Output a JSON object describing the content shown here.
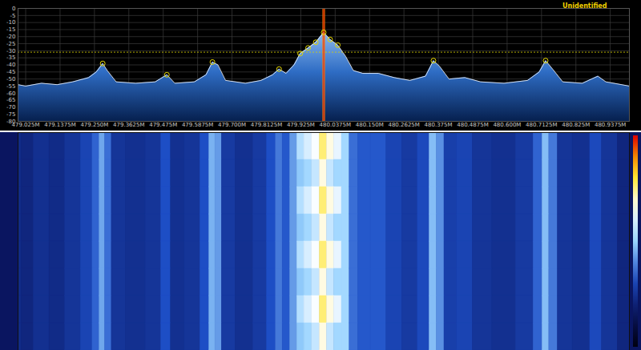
{
  "chart_data": [
    {
      "type": "area",
      "title": "Unidentified",
      "color": "#ffffff",
      "grid": true,
      "x": [
        479.0,
        479.025,
        479.077,
        479.128,
        479.179,
        479.231,
        479.256,
        479.277,
        479.292,
        479.321,
        479.385,
        479.449,
        479.487,
        479.513,
        479.577,
        479.615,
        479.636,
        479.654,
        479.679,
        479.744,
        479.795,
        479.833,
        479.854,
        479.877,
        479.903,
        479.923,
        479.949,
        479.974,
        480.0,
        480.021,
        480.046,
        480.072,
        480.097,
        480.128,
        480.179,
        480.231,
        480.282,
        480.333,
        480.359,
        480.379,
        480.41,
        480.462,
        480.513,
        480.59,
        480.667,
        480.705,
        480.726,
        480.749,
        480.782,
        480.846,
        480.897,
        480.923,
        481.0
      ],
      "values": [
        -54,
        -55,
        -53,
        -54,
        -52,
        -49,
        -45,
        -39,
        -44,
        -52,
        -53,
        -52,
        -47,
        -53,
        -52,
        -47,
        -38,
        -40,
        -51,
        -53,
        -51,
        -47,
        -43,
        -46,
        -40,
        -32,
        -28,
        -24,
        -17,
        -22,
        -26,
        -34,
        -44,
        -46,
        -46,
        -49,
        -51,
        -48,
        -37,
        -41,
        -50,
        -49,
        -52,
        -53,
        -51,
        -45,
        -37,
        -43,
        -52,
        -53,
        -48,
        -52,
        -55
      ],
      "xlim": [
        479.0,
        481.0
      ],
      "xticks": [
        {
          "value": 479.025,
          "label": "479.025M"
        },
        {
          "value": 479.1375,
          "label": "479.1375M"
        },
        {
          "value": 479.25,
          "label": "479.250M"
        },
        {
          "value": 479.3625,
          "label": "479.3625M"
        },
        {
          "value": 479.475,
          "label": "479.475M"
        },
        {
          "value": 479.5875,
          "label": "479.5875M"
        },
        {
          "value": 479.7,
          "label": "479.700M"
        },
        {
          "value": 479.8125,
          "label": "479.8125M"
        },
        {
          "value": 479.925,
          "label": "479.925M"
        },
        {
          "value": 480.0375,
          "label": "480.0375M"
        },
        {
          "value": 480.15,
          "label": "480.150M"
        },
        {
          "value": 480.2625,
          "label": "480.2625M"
        },
        {
          "value": 480.375,
          "label": "480.375M"
        },
        {
          "value": 480.4875,
          "label": "480.4875M"
        },
        {
          "value": 480.6,
          "label": "480.600M"
        },
        {
          "value": 480.7125,
          "label": "480.7125M"
        },
        {
          "value": 480.825,
          "label": "480.825M"
        },
        {
          "value": 480.9375,
          "label": "480.9375M"
        }
      ],
      "ylim": [
        -80,
        0
      ],
      "yticks": [
        -80,
        -75,
        -70,
        -65,
        -60,
        -55,
        -50,
        -45,
        -40,
        -35,
        -30,
        -25,
        -20,
        -15,
        -10,
        -5,
        0
      ],
      "threshold": -31,
      "center_frequency": 480.0,
      "peaks": [
        479.277,
        479.487,
        479.636,
        479.854,
        479.923,
        479.949,
        479.974,
        480.0,
        480.021,
        480.046,
        480.359,
        480.726
      ]
    },
    {
      "type": "heatmap",
      "tick_labels": false,
      "x": [
        479.0,
        479.025,
        479.077,
        479.128,
        479.179,
        479.231,
        479.256,
        479.277,
        479.292,
        479.321,
        479.385,
        479.449,
        479.487,
        479.513,
        479.577,
        479.615,
        479.636,
        479.654,
        479.679,
        479.744,
        479.795,
        479.833,
        479.854,
        479.877,
        479.903,
        479.923,
        479.949,
        479.974,
        480.0,
        480.021,
        480.046,
        480.072,
        480.097,
        480.128,
        480.179,
        480.231,
        480.282,
        480.333,
        480.359,
        480.379,
        480.41,
        480.462,
        480.513,
        480.59,
        480.667,
        480.705,
        480.726,
        480.749,
        480.782,
        480.846,
        480.897,
        480.923,
        481.0
      ],
      "xlim": [
        479.0,
        481.0
      ],
      "color_range": [
        -70,
        0
      ],
      "cells": [
        [
          -54,
          -55,
          -53,
          -54,
          -52,
          -49,
          -45,
          -39,
          -44,
          -52,
          -53,
          -52,
          -47,
          -53,
          -52,
          -47,
          -38,
          -40,
          -51,
          -53,
          -51,
          -47,
          -43,
          -46,
          -40,
          -32,
          -28,
          -24,
          -17,
          -22,
          -26,
          -34,
          -44,
          -46,
          -46,
          -49,
          -51,
          -48,
          -37,
          -41,
          -50,
          -49,
          -52,
          -53,
          -51,
          -45,
          -37,
          -43,
          -52,
          -53,
          -48,
          -52,
          -55
        ],
        [
          -54,
          -55,
          -53,
          -54,
          -52,
          -49,
          -45,
          -39,
          -44,
          -52,
          -53,
          -52,
          -47,
          -53,
          -52,
          -47,
          -38,
          -40,
          -51,
          -53,
          -51,
          -47,
          -43,
          -46,
          -40,
          -36,
          -34,
          -30,
          -22,
          -30,
          -34,
          -34,
          -44,
          -46,
          -46,
          -49,
          -51,
          -48,
          -37,
          -41,
          -50,
          -49,
          -52,
          -53,
          -51,
          -45,
          -37,
          -43,
          -52,
          -53,
          -48,
          -52,
          -55
        ],
        [
          -54,
          -55,
          -53,
          -54,
          -52,
          -49,
          -45,
          -39,
          -44,
          -52,
          -53,
          -52,
          -47,
          -53,
          -52,
          -47,
          -38,
          -40,
          -51,
          -53,
          -51,
          -47,
          -43,
          -46,
          -40,
          -32,
          -28,
          -24,
          -17,
          -22,
          -26,
          -34,
          -44,
          -46,
          -46,
          -49,
          -51,
          -48,
          -37,
          -41,
          -50,
          -49,
          -52,
          -53,
          -51,
          -45,
          -37,
          -43,
          -52,
          -53,
          -48,
          -52,
          -55
        ],
        [
          -54,
          -55,
          -53,
          -54,
          -52,
          -49,
          -45,
          -39,
          -44,
          -52,
          -53,
          -52,
          -47,
          -53,
          -52,
          -47,
          -38,
          -40,
          -51,
          -53,
          -51,
          -47,
          -43,
          -46,
          -40,
          -36,
          -34,
          -30,
          -22,
          -30,
          -34,
          -34,
          -44,
          -46,
          -46,
          -49,
          -51,
          -48,
          -37,
          -41,
          -50,
          -49,
          -52,
          -53,
          -51,
          -45,
          -37,
          -43,
          -52,
          -53,
          -48,
          -52,
          -55
        ],
        [
          -54,
          -55,
          -53,
          -54,
          -52,
          -49,
          -45,
          -39,
          -44,
          -52,
          -53,
          -52,
          -47,
          -53,
          -52,
          -47,
          -38,
          -40,
          -51,
          -53,
          -51,
          -47,
          -43,
          -46,
          -40,
          -32,
          -28,
          -24,
          -17,
          -22,
          -26,
          -34,
          -44,
          -46,
          -46,
          -49,
          -51,
          -48,
          -37,
          -41,
          -50,
          -49,
          -52,
          -53,
          -51,
          -45,
          -37,
          -43,
          -52,
          -53,
          -48,
          -52,
          -55
        ],
        [
          -54,
          -55,
          -53,
          -54,
          -52,
          -49,
          -45,
          -39,
          -44,
          -52,
          -53,
          -52,
          -47,
          -53,
          -52,
          -47,
          -38,
          -40,
          -51,
          -53,
          -51,
          -47,
          -43,
          -46,
          -40,
          -36,
          -34,
          -30,
          -22,
          -30,
          -34,
          -34,
          -44,
          -46,
          -46,
          -49,
          -51,
          -48,
          -37,
          -41,
          -50,
          -49,
          -52,
          -53,
          -51,
          -45,
          -37,
          -43,
          -52,
          -53,
          -48,
          -52,
          -55
        ],
        [
          -54,
          -55,
          -53,
          -54,
          -52,
          -49,
          -45,
          -39,
          -44,
          -52,
          -53,
          -52,
          -47,
          -53,
          -52,
          -47,
          -38,
          -40,
          -51,
          -53,
          -51,
          -47,
          -43,
          -46,
          -40,
          -32,
          -28,
          -24,
          -17,
          -22,
          -26,
          -34,
          -44,
          -46,
          -46,
          -49,
          -51,
          -48,
          -37,
          -41,
          -50,
          -49,
          -52,
          -53,
          -51,
          -45,
          -37,
          -43,
          -52,
          -53,
          -48,
          -52,
          -55
        ],
        [
          -54,
          -55,
          -53,
          -54,
          -52,
          -49,
          -45,
          -39,
          -44,
          -52,
          -53,
          -52,
          -47,
          -53,
          -52,
          -47,
          -38,
          -40,
          -51,
          -53,
          -51,
          -47,
          -43,
          -46,
          -40,
          -36,
          -34,
          -30,
          -22,
          -30,
          -34,
          -34,
          -44,
          -46,
          -46,
          -49,
          -51,
          -48,
          -37,
          -41,
          -50,
          -49,
          -52,
          -53,
          -51,
          -45,
          -37,
          -43,
          -52,
          -53,
          -48,
          -52,
          -55
        ]
      ]
    }
  ]
}
